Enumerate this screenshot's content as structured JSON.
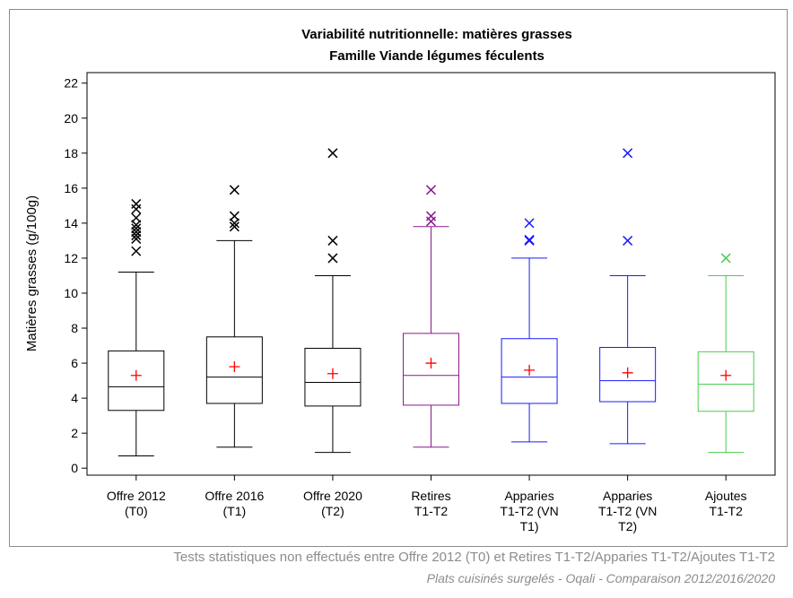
{
  "chart_data": {
    "type": "box",
    "title": "Variabilité nutritionnelle: matières grasses",
    "subtitle": "Famille Viande légumes féculents",
    "ylabel": "Matières grasses (g/100g)",
    "xlabel": "",
    "ylim": [
      -0.4,
      22.6
    ],
    "yticks": [
      0,
      2,
      4,
      6,
      8,
      10,
      12,
      14,
      16,
      18,
      20,
      22
    ],
    "grid": false,
    "categories": [
      [
        "Offre 2012",
        "(T0)"
      ],
      [
        "Offre 2016",
        "(T1)"
      ],
      [
        "Offre 2020",
        "(T2)"
      ],
      [
        "Retires",
        "T1-T2"
      ],
      [
        "Apparies",
        "T1-T2 (VN",
        "T1)"
      ],
      [
        "Apparies",
        "T1-T2 (VN",
        "T2)"
      ],
      [
        "Ajoutes",
        "T1-T2"
      ]
    ],
    "colors": [
      "#000000",
      "#000000",
      "#000000",
      "#8b1a8b",
      "#1a1aff",
      "#1a1aff",
      "#4dcc4d"
    ],
    "mean_color": "#ff0000",
    "series": [
      {
        "min": 0.7,
        "q1": 3.3,
        "median": 4.65,
        "q3": 6.7,
        "max": 11.2,
        "mean": 5.3,
        "outliers": [
          12.4,
          13.1,
          13.3,
          13.5,
          13.7,
          13.9,
          14.3,
          14.8,
          15.1
        ]
      },
      {
        "min": 1.2,
        "q1": 3.7,
        "median": 5.2,
        "q3": 7.5,
        "max": 13.0,
        "mean": 5.8,
        "outliers": [
          13.8,
          14.0,
          14.4,
          15.9
        ]
      },
      {
        "min": 0.9,
        "q1": 3.55,
        "median": 4.9,
        "q3": 6.85,
        "max": 11.0,
        "mean": 5.4,
        "outliers": [
          12.0,
          13.0,
          18.0
        ]
      },
      {
        "min": 1.2,
        "q1": 3.6,
        "median": 5.3,
        "q3": 7.7,
        "max": 13.8,
        "mean": 6.0,
        "outliers": [
          14.1,
          14.4,
          15.9
        ]
      },
      {
        "min": 1.5,
        "q1": 3.7,
        "median": 5.2,
        "q3": 7.4,
        "max": 12.0,
        "mean": 5.6,
        "outliers": [
          13.0,
          13.05,
          14.0
        ]
      },
      {
        "min": 1.4,
        "q1": 3.8,
        "median": 5.0,
        "q3": 6.9,
        "max": 11.0,
        "mean": 5.45,
        "outliers": [
          13.0,
          18.0
        ]
      },
      {
        "min": 0.9,
        "q1": 3.25,
        "median": 4.8,
        "q3": 6.65,
        "max": 11.0,
        "mean": 5.3,
        "outliers": [
          12.0
        ]
      }
    ]
  },
  "footnote": "Tests statistiques non effectués entre Offre 2012 (T0) et Retires T1-T2/Apparies T1-T2/Ajoutes T1-T2",
  "source": "Plats cuisinés surgelés - Oqali - Comparaison 2012/2016/2020"
}
